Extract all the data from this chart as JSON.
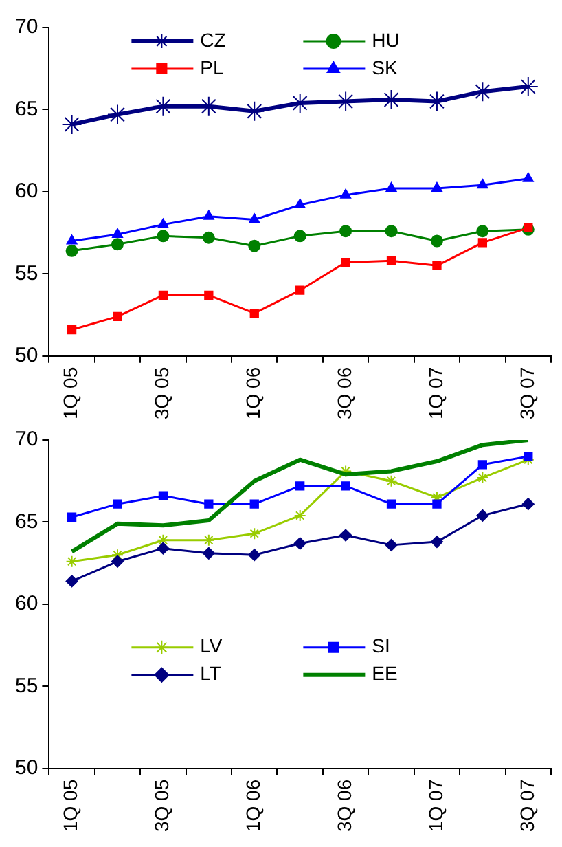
{
  "chart_data": [
    {
      "type": "line",
      "categories": [
        "1Q 05",
        null,
        "3Q 05",
        null,
        "1Q 06",
        null,
        "3Q 06",
        null,
        "1Q 07",
        null,
        "3Q 07"
      ],
      "ylim": [
        50,
        70
      ],
      "yticks": [
        50,
        55,
        60,
        65,
        70
      ],
      "legend": "top",
      "series": [
        {
          "name": "CZ",
          "color": "#000080",
          "marker": "cross",
          "values": [
            64.1,
            64.7,
            65.2,
            65.2,
            64.9,
            65.4,
            65.5,
            65.6,
            65.5,
            66.1,
            66.4
          ]
        },
        {
          "name": "HU",
          "color": "#008000",
          "marker": "circle",
          "values": [
            56.4,
            56.8,
            57.3,
            57.2,
            56.7,
            57.3,
            57.6,
            57.6,
            57.0,
            57.6,
            57.7
          ]
        },
        {
          "name": "PL",
          "color": "#ff0000",
          "marker": "square",
          "values": [
            51.6,
            52.4,
            53.7,
            53.7,
            52.6,
            54.0,
            55.7,
            55.8,
            55.5,
            56.9,
            57.8
          ]
        },
        {
          "name": "SK",
          "color": "#0000ff",
          "marker": "triangle",
          "values": [
            57.0,
            57.4,
            58.0,
            58.5,
            58.3,
            59.2,
            59.8,
            60.2,
            60.2,
            60.4,
            60.8
          ]
        }
      ]
    },
    {
      "type": "line",
      "categories": [
        "1Q 05",
        null,
        "3Q 05",
        null,
        "1Q 06",
        null,
        "3Q 06",
        null,
        "1Q 07",
        null,
        "3Q 07"
      ],
      "ylim": [
        50,
        70
      ],
      "yticks": [
        50,
        55,
        60,
        65,
        70
      ],
      "legend": "bottom",
      "series": [
        {
          "name": "LV",
          "color": "#99cc00",
          "marker": "cross",
          "values": [
            62.6,
            63.0,
            63.9,
            63.9,
            64.3,
            65.4,
            68.1,
            67.5,
            66.5,
            67.7,
            68.8
          ]
        },
        {
          "name": "SI",
          "color": "#0000ff",
          "marker": "square",
          "values": [
            65.3,
            66.1,
            66.6,
            66.1,
            66.1,
            67.2,
            67.2,
            66.1,
            66.1,
            68.5,
            69.0
          ]
        },
        {
          "name": "LT",
          "color": "#000080",
          "marker": "diamond",
          "values": [
            61.4,
            62.6,
            63.4,
            63.1,
            63.0,
            63.7,
            64.2,
            63.6,
            63.8,
            65.4,
            66.1
          ]
        },
        {
          "name": "EE",
          "color": "#008000",
          "marker": "none",
          "values": [
            63.2,
            64.9,
            64.8,
            65.1,
            67.5,
            68.8,
            67.9,
            68.1,
            68.7,
            69.7,
            70.0
          ]
        }
      ]
    }
  ]
}
